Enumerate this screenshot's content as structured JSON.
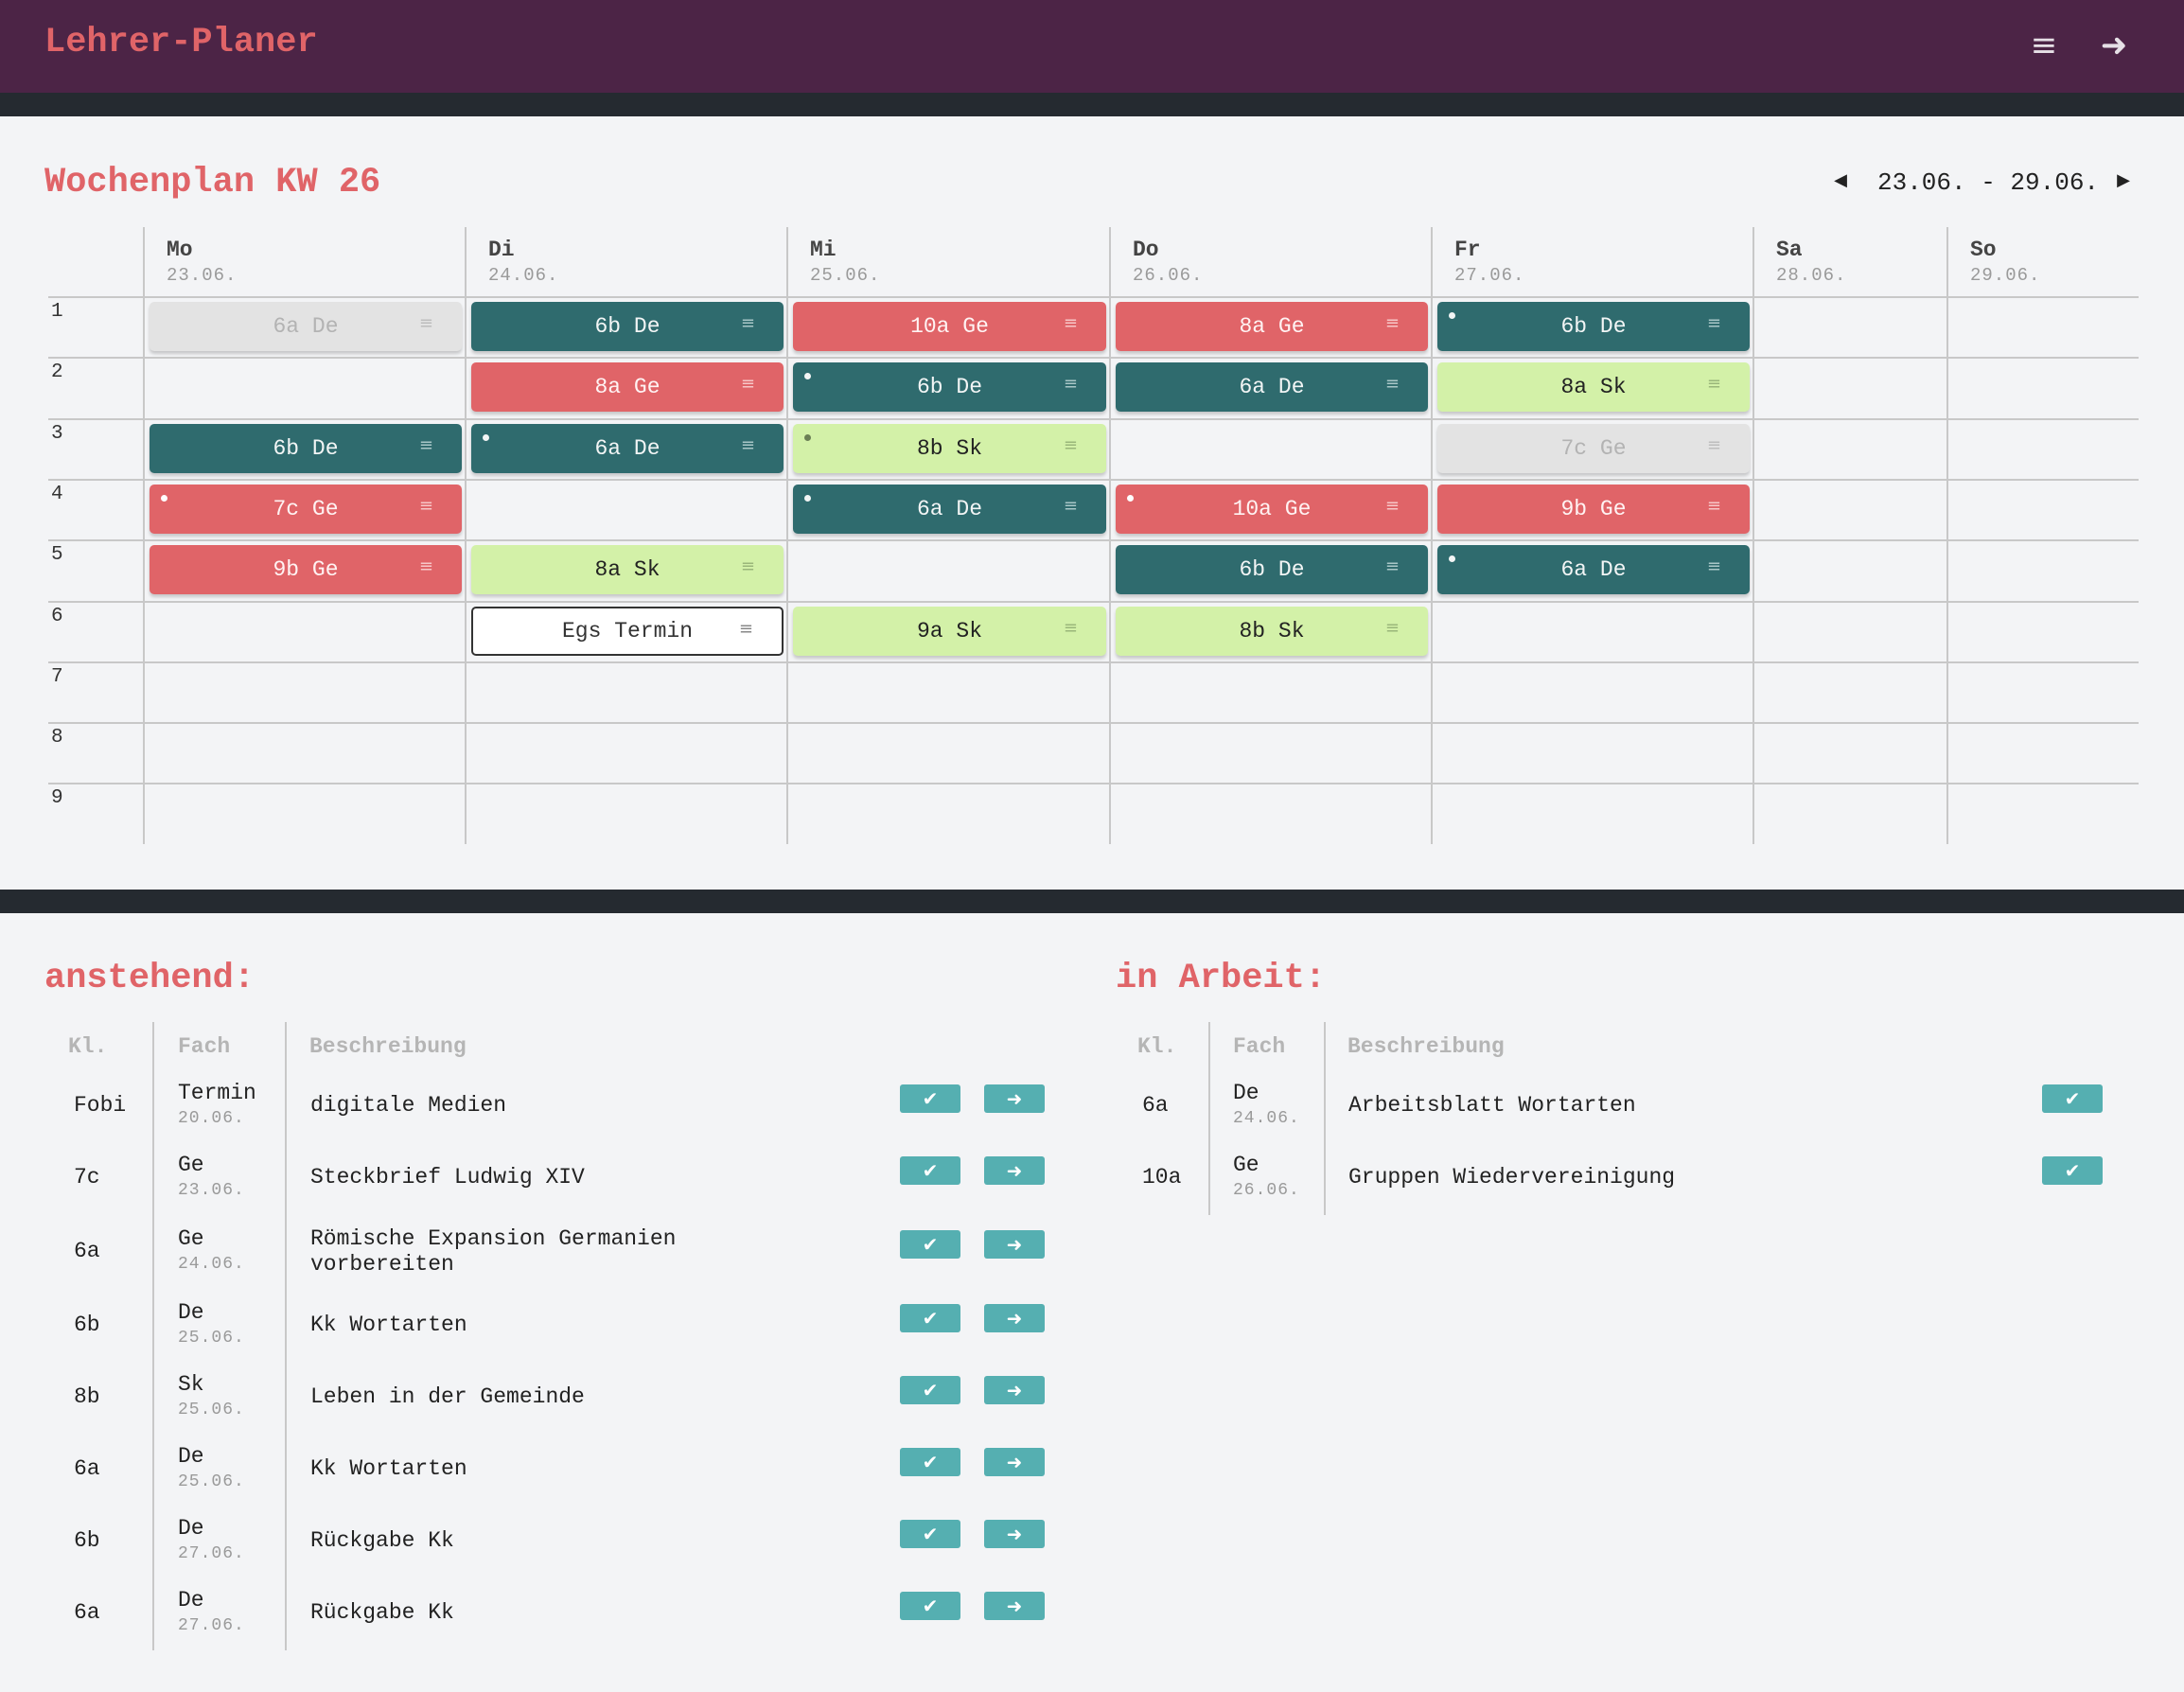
{
  "app": {
    "title": "Lehrer-Planer",
    "menu_icon": "menu-icon",
    "logout_icon": "logout-icon"
  },
  "week": {
    "title": "Wochenplan KW 26",
    "range": "23.06. - 29.06.",
    "prev_icon": "triangle-left-icon",
    "next_icon": "triangle-right-icon"
  },
  "days": [
    {
      "name": "Mo",
      "date": "23.06."
    },
    {
      "name": "Di",
      "date": "24.06."
    },
    {
      "name": "Mi",
      "date": "25.06."
    },
    {
      "name": "Do",
      "date": "26.06."
    },
    {
      "name": "Fr",
      "date": "27.06."
    },
    {
      "name": "Sa",
      "date": "28.06."
    },
    {
      "name": "So",
      "date": "29.06."
    }
  ],
  "periods": [
    "1",
    "2",
    "3",
    "4",
    "5",
    "6",
    "7",
    "8",
    "9"
  ],
  "lessons": [
    {
      "day": 0,
      "period": 0,
      "label": "6a De",
      "style": "grey",
      "dot": false
    },
    {
      "day": 1,
      "period": 0,
      "label": "6b De",
      "style": "teal",
      "dot": false
    },
    {
      "day": 2,
      "period": 0,
      "label": "10a Ge",
      "style": "red",
      "dot": false
    },
    {
      "day": 3,
      "period": 0,
      "label": "8a Ge",
      "style": "red",
      "dot": false
    },
    {
      "day": 4,
      "period": 0,
      "label": "6b De",
      "style": "teal",
      "dot": true
    },
    {
      "day": 1,
      "period": 1,
      "label": "8a Ge",
      "style": "red",
      "dot": false
    },
    {
      "day": 2,
      "period": 1,
      "label": "6b De",
      "style": "teal",
      "dot": true
    },
    {
      "day": 3,
      "period": 1,
      "label": "6a De",
      "style": "teal",
      "dot": false
    },
    {
      "day": 4,
      "period": 1,
      "label": "8a Sk",
      "style": "green",
      "dot": false
    },
    {
      "day": 0,
      "period": 2,
      "label": "6b De",
      "style": "teal",
      "dot": false
    },
    {
      "day": 1,
      "period": 2,
      "label": "6a De",
      "style": "teal",
      "dot": true
    },
    {
      "day": 2,
      "period": 2,
      "label": "8b Sk",
      "style": "green",
      "dot": true
    },
    {
      "day": 4,
      "period": 2,
      "label": "7c Ge",
      "style": "grey",
      "dot": false
    },
    {
      "day": 0,
      "period": 3,
      "label": "7c Ge",
      "style": "red",
      "dot": true
    },
    {
      "day": 2,
      "period": 3,
      "label": "6a De",
      "style": "teal",
      "dot": true
    },
    {
      "day": 3,
      "period": 3,
      "label": "10a Ge",
      "style": "red",
      "dot": true
    },
    {
      "day": 4,
      "period": 3,
      "label": "9b Ge",
      "style": "red",
      "dot": false
    },
    {
      "day": 0,
      "period": 4,
      "label": "9b Ge",
      "style": "red",
      "dot": false
    },
    {
      "day": 1,
      "period": 4,
      "label": "8a Sk",
      "style": "green",
      "dot": false
    },
    {
      "day": 3,
      "period": 4,
      "label": "6b De",
      "style": "teal",
      "dot": false
    },
    {
      "day": 4,
      "period": 4,
      "label": "6a De",
      "style": "teal",
      "dot": true
    },
    {
      "day": 1,
      "period": 5,
      "label": "Egs Termin",
      "style": "outline",
      "dot": false
    },
    {
      "day": 2,
      "period": 5,
      "label": "9a Sk",
      "style": "green",
      "dot": false
    },
    {
      "day": 3,
      "period": 5,
      "label": "8b Sk",
      "style": "green",
      "dot": false
    }
  ],
  "lesson_menu_glyph": "≡",
  "anstehend": {
    "title": "anstehend:",
    "headers": {
      "kl": "Kl.",
      "fach": "Fach",
      "beschreibung": "Beschreibung"
    },
    "rows": [
      {
        "kl": "Fobi",
        "fach": "Termin",
        "date": "20.06.",
        "desc": "digitale Medien",
        "desc2": ""
      },
      {
        "kl": "7c",
        "fach": "Ge",
        "date": "23.06.",
        "desc": "Steckbrief Ludwig XIV",
        "desc2": ""
      },
      {
        "kl": "6a",
        "fach": "Ge",
        "date": "24.06.",
        "desc": "Römische Expansion Germanien",
        "desc2": "vorbereiten"
      },
      {
        "kl": "6b",
        "fach": "De",
        "date": "25.06.",
        "desc": "Kk Wortarten",
        "desc2": ""
      },
      {
        "kl": "8b",
        "fach": "Sk",
        "date": "25.06.",
        "desc": "Leben in der Gemeinde",
        "desc2": ""
      },
      {
        "kl": "6a",
        "fach": "De",
        "date": "25.06.",
        "desc": "Kk Wortarten",
        "desc2": ""
      },
      {
        "kl": "6b",
        "fach": "De",
        "date": "27.06.",
        "desc": "Rückgabe Kk",
        "desc2": ""
      },
      {
        "kl": "6a",
        "fach": "De",
        "date": "27.06.",
        "desc": "Rückgabe Kk",
        "desc2": ""
      }
    ]
  },
  "in_arbeit": {
    "title": "in Arbeit:",
    "headers": {
      "kl": "Kl.",
      "fach": "Fach",
      "beschreibung": "Beschreibung"
    },
    "rows": [
      {
        "kl": "6a",
        "fach": "De",
        "date": "24.06.",
        "desc": "Arbeitsblatt Wortarten"
      },
      {
        "kl": "10a",
        "fach": "Ge",
        "date": "26.06.",
        "desc": "Gruppen Wiedervereinigung"
      }
    ]
  },
  "buttons": {
    "done_glyph": "✔",
    "forward_glyph": "➜"
  },
  "colors": {
    "teal": "#2f6b6e",
    "red": "#e06468",
    "green": "#d3f1a8",
    "grey": "#e3e3e3",
    "button": "#55afb1",
    "header": "#4c2446"
  }
}
